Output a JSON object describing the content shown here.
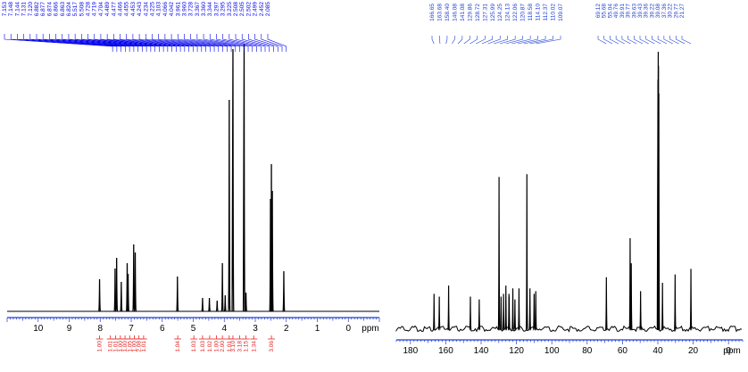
{
  "colors": {
    "spectrum": "#000000",
    "peak_labels_h": "#0000ee",
    "peak_labels_c": "#1d3fd6",
    "integrals": "#e32222",
    "axis_blue": "#1f3cd0"
  },
  "chart_data": [
    {
      "type": "line",
      "name": "1H NMR spectrum",
      "xlabel": "ppm",
      "xlim": [
        11.0,
        -1.0
      ],
      "x_reversed": true,
      "ticks": [
        10,
        9,
        8,
        7,
        6,
        5,
        4,
        3,
        2,
        1,
        0
      ],
      "tick_labels": [
        "10",
        "9",
        "8",
        "7",
        "6",
        "5",
        "4",
        "3",
        "2",
        "1",
        "0"
      ],
      "peaks": [
        {
          "ppm": 8.02,
          "h": 0.12
        },
        {
          "ppm": 7.52,
          "h": 0.16
        },
        {
          "ppm": 7.47,
          "h": 0.2
        },
        {
          "ppm": 7.32,
          "h": 0.11
        },
        {
          "ppm": 7.13,
          "h": 0.18
        },
        {
          "ppm": 7.1,
          "h": 0.14
        },
        {
          "ppm": 6.92,
          "h": 0.25
        },
        {
          "ppm": 6.87,
          "h": 0.22
        },
        {
          "ppm": 5.51,
          "h": 0.13
        },
        {
          "ppm": 4.7,
          "h": 0.05
        },
        {
          "ppm": 4.48,
          "h": 0.05
        },
        {
          "ppm": 4.23,
          "h": 0.04
        },
        {
          "ppm": 4.06,
          "h": 0.18
        },
        {
          "ppm": 3.97,
          "h": 0.06
        },
        {
          "ppm": 3.84,
          "h": 0.79
        },
        {
          "ppm": 3.72,
          "h": 0.98
        },
        {
          "ppm": 3.36,
          "h": 1.0
        },
        {
          "ppm": 3.3,
          "h": 0.07
        },
        {
          "ppm": 2.51,
          "h": 0.42
        },
        {
          "ppm": 2.48,
          "h": 0.55
        },
        {
          "ppm": 2.45,
          "h": 0.45
        },
        {
          "ppm": 2.08,
          "h": 0.15
        }
      ],
      "peak_label_lines": [
        "7.153",
        "7.148",
        "7.144",
        "7.131",
        "7.120",
        "6.882",
        "6.877",
        "6.874",
        "6.866",
        "6.863",
        "6.824",
        "5.517",
        "5.508",
        "4.728",
        "4.719",
        "4.704",
        "4.489",
        "4.477",
        "4.466",
        "4.455",
        "4.453",
        "4.243",
        "4.234",
        "4.225",
        "4.103",
        "4.066",
        "4.042",
        "3.961",
        "3.960",
        "3.728",
        "3.367",
        "3.360",
        "3.344",
        "3.297",
        "3.295",
        "3.225",
        "2.508",
        "2.505",
        "2.502",
        "2.499",
        "2.452",
        "2.085"
      ],
      "integrals": [
        {
          "ppm": 8.02,
          "label": "1.00"
        },
        {
          "ppm": 7.67,
          "label": "1.01"
        },
        {
          "ppm": 7.5,
          "label": "1.01"
        },
        {
          "ppm": 7.35,
          "label": "1.00"
        },
        {
          "ppm": 7.2,
          "label": "1.00"
        },
        {
          "ppm": 7.05,
          "label": "1.05"
        },
        {
          "ppm": 6.9,
          "label": "1.00"
        },
        {
          "ppm": 6.75,
          "label": "2.08"
        },
        {
          "ppm": 6.6,
          "label": "1.01"
        },
        {
          "ppm": 5.5,
          "label": "1.04"
        },
        {
          "ppm": 4.98,
          "label": "1.03"
        },
        {
          "ppm": 4.7,
          "label": "1.03"
        },
        {
          "ppm": 4.47,
          "label": "1.02"
        },
        {
          "ppm": 4.25,
          "label": "1.00"
        },
        {
          "ppm": 4.06,
          "label": "2.00"
        },
        {
          "ppm": 3.84,
          "label": "1.01"
        },
        {
          "ppm": 3.72,
          "label": "3.10"
        },
        {
          "ppm": 3.5,
          "label": "3.18"
        },
        {
          "ppm": 3.3,
          "label": "1.15"
        },
        {
          "ppm": 3.05,
          "label": "1.34"
        },
        {
          "ppm": 2.48,
          "label": "3.06"
        }
      ]
    },
    {
      "type": "line",
      "name": "13C NMR spectrum",
      "xlabel": "ppm",
      "xlim": [
        188,
        -8
      ],
      "x_reversed": true,
      "ticks": [
        180,
        160,
        140,
        120,
        100,
        80,
        60,
        40,
        20,
        0
      ],
      "tick_labels": [
        "180",
        "160",
        "140",
        "120",
        "100",
        "80",
        "60",
        "40",
        "20",
        "0"
      ],
      "peaks": [
        {
          "ppm": 166.65,
          "h": 0.13
        },
        {
          "ppm": 163.68,
          "h": 0.12
        },
        {
          "ppm": 158.4,
          "h": 0.16
        },
        {
          "ppm": 146.08,
          "h": 0.12
        },
        {
          "ppm": 141.08,
          "h": 0.11
        },
        {
          "ppm": 129.86,
          "h": 0.55
        },
        {
          "ppm": 128.72,
          "h": 0.12
        },
        {
          "ppm": 127.31,
          "h": 0.13
        },
        {
          "ppm": 125.99,
          "h": 0.16
        },
        {
          "ppm": 124.25,
          "h": 0.13
        },
        {
          "ppm": 124.13,
          "h": 0.12
        },
        {
          "ppm": 122.06,
          "h": 0.15
        },
        {
          "ppm": 120.87,
          "h": 0.11
        },
        {
          "ppm": 118.58,
          "h": 0.15
        },
        {
          "ppm": 114.1,
          "h": 0.56
        },
        {
          "ppm": 112.37,
          "h": 0.15
        },
        {
          "ppm": 110.02,
          "h": 0.13
        },
        {
          "ppm": 109.07,
          "h": 0.14
        },
        {
          "ppm": 69.12,
          "h": 0.19
        },
        {
          "ppm": 55.68,
          "h": 0.33
        },
        {
          "ppm": 55.04,
          "h": 0.24
        },
        {
          "ppm": 49.76,
          "h": 0.14
        },
        {
          "ppm": 39.91,
          "h": 0.9
        },
        {
          "ppm": 39.77,
          "h": 1.0
        },
        {
          "ppm": 39.63,
          "h": 0.95
        },
        {
          "ppm": 39.43,
          "h": 0.85
        },
        {
          "ppm": 37.36,
          "h": 0.17
        },
        {
          "ppm": 30.22,
          "h": 0.2
        },
        {
          "ppm": 21.27,
          "h": 0.22
        }
      ],
      "peak_label_lines": [
        "166.65",
        "163.68",
        "158.40",
        "146.08",
        "141.08",
        "129.86",
        "128.72",
        "127.31",
        "125.99",
        "124.25",
        "124.13",
        "122.06",
        "120.87",
        "118.58",
        "114.10",
        "112.37",
        "110.02",
        "109.07",
        "69.12",
        "55.68",
        "55.04",
        "49.76",
        "39.91",
        "39.77",
        "39.63",
        "39.43",
        "39.36",
        "39.22",
        "39.08",
        "37.36",
        "30.22",
        "29.77",
        "21.27"
      ]
    }
  ]
}
